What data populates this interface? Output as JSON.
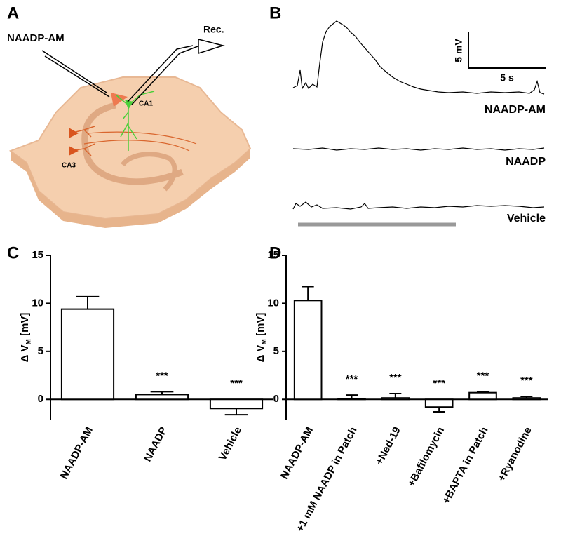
{
  "panel_labels": [
    "A",
    "B",
    "C",
    "D"
  ],
  "diagram": {
    "pipette_label": "NAADP-AM",
    "recording_label": "Rec.",
    "regions": [
      "CA1",
      "CA3"
    ]
  },
  "traces": {
    "labels": [
      "NAADP-AM",
      "NAADP",
      "Vehicle"
    ],
    "scale_bar": [
      "5 mV",
      "5 s"
    ]
  },
  "chart_data": [
    {
      "type": "bar",
      "ylabel": [
        "Δ V",
        "M",
        " [mV]"
      ],
      "categories": [
        "NAADP-AM",
        "NAADP",
        "Vehicle"
      ],
      "values": [
        9.4,
        0.5,
        -0.95
      ],
      "errors": [
        1.3,
        0.3,
        0.65
      ],
      "annotations": [
        null,
        "***",
        "***"
      ],
      "color": "#ffffff",
      "edgecolor": "#000000",
      "ylim": [
        -2.1,
        15
      ],
      "yticks": [
        0,
        5,
        10,
        15
      ]
    },
    {
      "type": "bar",
      "ylabel": [
        "Δ V",
        "M",
        " [mV]"
      ],
      "categories": [
        "NAADP-AM",
        "+1 mM NAADP in Patch",
        "+Ned-19",
        "+Bafilomycin",
        "+BAPTA in Patch",
        "+Ryanodine"
      ],
      "values": [
        10.3,
        0.05,
        0.15,
        -0.8,
        0.7,
        0.15
      ],
      "errors": [
        1.45,
        0.4,
        0.45,
        0.5,
        0.1,
        0.15
      ],
      "annotations": [
        null,
        "***",
        "***",
        "***",
        "***",
        "***"
      ],
      "color": "#ffffff",
      "edgecolor": "#000000",
      "ylim": [
        -2.1,
        15
      ],
      "yticks": [
        0,
        5,
        10,
        15
      ]
    }
  ]
}
